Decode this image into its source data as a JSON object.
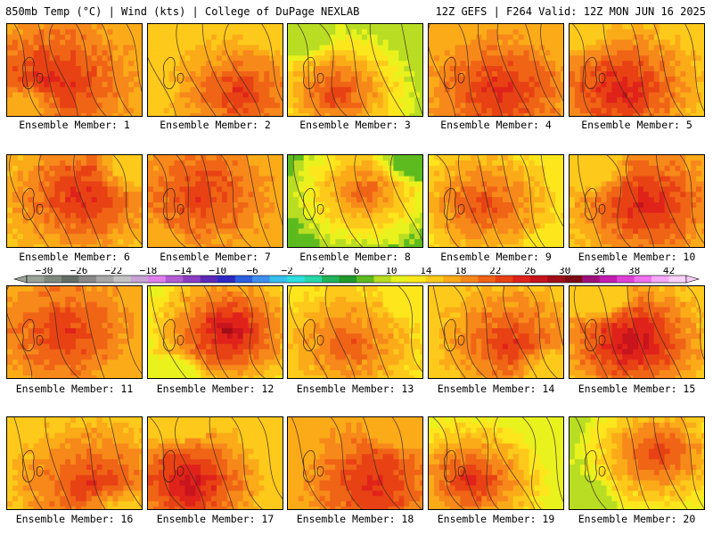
{
  "header": {
    "left": "850mb Temp (°C) | Wind (kts) | College of DuPage NEXLAB",
    "right": "12Z GEFS | F264 Valid: 12Z MON JUN 16 2025"
  },
  "panels": [
    {
      "member": 1,
      "label": "Ensemble Member: 1",
      "temp_min": 17,
      "temp_max": 25
    },
    {
      "member": 2,
      "label": "Ensemble Member: 2",
      "temp_min": 14,
      "temp_max": 24
    },
    {
      "member": 3,
      "label": "Ensemble Member: 3",
      "temp_min": 8,
      "temp_max": 24
    },
    {
      "member": 4,
      "label": "Ensemble Member: 4",
      "temp_min": 16,
      "temp_max": 25
    },
    {
      "member": 5,
      "label": "Ensemble Member: 5",
      "temp_min": 15,
      "temp_max": 26
    },
    {
      "member": 6,
      "label": "Ensemble Member: 6",
      "temp_min": 15,
      "temp_max": 25
    },
    {
      "member": 7,
      "label": "Ensemble Member: 7",
      "temp_min": 16,
      "temp_max": 24
    },
    {
      "member": 8,
      "label": "Ensemble Member: 8",
      "temp_min": 6,
      "temp_max": 22
    },
    {
      "member": 9,
      "label": "Ensemble Member: 9",
      "temp_min": 12,
      "temp_max": 23
    },
    {
      "member": 10,
      "label": "Ensemble Member: 10",
      "temp_min": 15,
      "temp_max": 26
    },
    {
      "member": 11,
      "label": "Ensemble Member: 11",
      "temp_min": 16,
      "temp_max": 24
    },
    {
      "member": 12,
      "label": "Ensemble Member: 12",
      "temp_min": 11,
      "temp_max": 28
    },
    {
      "member": 13,
      "label": "Ensemble Member: 13",
      "temp_min": 12,
      "temp_max": 22
    },
    {
      "member": 14,
      "label": "Ensemble Member: 14",
      "temp_min": 14,
      "temp_max": 24
    },
    {
      "member": 15,
      "label": "Ensemble Member: 15",
      "temp_min": 14,
      "temp_max": 28
    },
    {
      "member": 16,
      "label": "Ensemble Member: 16",
      "temp_min": 15,
      "temp_max": 24
    },
    {
      "member": 17,
      "label": "Ensemble Member: 17",
      "temp_min": 14,
      "temp_max": 27
    },
    {
      "member": 18,
      "label": "Ensemble Member: 18",
      "temp_min": 16,
      "temp_max": 25
    },
    {
      "member": 19,
      "label": "Ensemble Member: 19",
      "temp_min": 10,
      "temp_max": 25
    },
    {
      "member": 20,
      "label": "Ensemble Member: 20",
      "temp_min": 9,
      "temp_max": 24
    }
  ],
  "colorbar": {
    "unit": "°C",
    "ticks": [
      -30,
      -26,
      -22,
      -18,
      -14,
      -10,
      -6,
      -2,
      2,
      6,
      10,
      14,
      18,
      22,
      26,
      30,
      34,
      38,
      42
    ],
    "colors": [
      "#9aa39a",
      "#7e897f",
      "#656e66",
      "#898989",
      "#a7a7a7",
      "#c3c3c3",
      "#c8a3d4",
      "#e07ef0",
      "#b25bd5",
      "#8b3cc4",
      "#5c2ab8",
      "#2e28c5",
      "#2b5fe0",
      "#3f8ff0",
      "#36c0ee",
      "#2ee0e0",
      "#27d8a8",
      "#20b35a",
      "#1f9a2a",
      "#5dbb1f",
      "#b8dd22",
      "#e9f21c",
      "#fde71c",
      "#fdc91a",
      "#fbaa18",
      "#f7881a",
      "#f06416",
      "#e84214",
      "#e0231a",
      "#c8141c",
      "#a20e18",
      "#7e0a14",
      "#a0107a",
      "#c41cb0",
      "#e040d8",
      "#f070f0",
      "#f8a8f8",
      "#fcd0fc"
    ]
  }
}
